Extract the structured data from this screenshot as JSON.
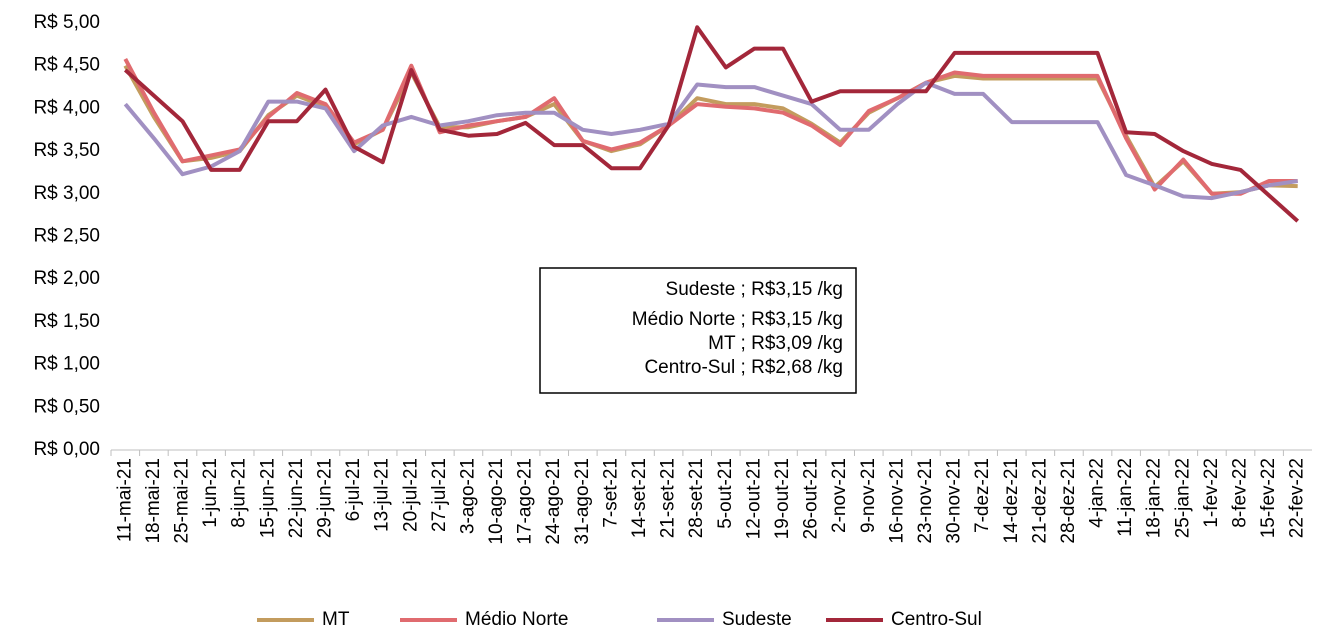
{
  "chart_data": {
    "type": "line",
    "categories": [
      "11-mai-21",
      "18-mai-21",
      "25-mai-21",
      "1-jun-21",
      "8-jun-21",
      "15-jun-21",
      "22-jun-21",
      "29-jun-21",
      "6-jul-21",
      "13-jul-21",
      "20-jul-21",
      "27-jul-21",
      "3-ago-21",
      "10-ago-21",
      "17-ago-21",
      "24-ago-21",
      "31-ago-21",
      "7-set-21",
      "14-set-21",
      "21-set-21",
      "28-set-21",
      "5-out-21",
      "12-out-21",
      "19-out-21",
      "26-out-21",
      "2-nov-21",
      "9-nov-21",
      "16-nov-21",
      "23-nov-21",
      "30-nov-21",
      "7-dez-21",
      "14-dez-21",
      "21-dez-21",
      "28-dez-21",
      "4-jan-22",
      "11-jan-22",
      "18-jan-22",
      "25-jan-22",
      "1-fev-22",
      "8-fev-22",
      "15-fev-22",
      "22-fev-22"
    ],
    "series": [
      {
        "name": "MT",
        "color": "#c39c5e",
        "values": [
          4.5,
          3.9,
          3.38,
          3.42,
          3.5,
          3.92,
          4.15,
          4.02,
          3.58,
          3.75,
          4.42,
          3.78,
          3.78,
          3.85,
          3.9,
          4.05,
          3.62,
          3.5,
          3.58,
          3.8,
          4.12,
          4.05,
          4.05,
          4.0,
          3.82,
          3.6,
          3.95,
          4.12,
          4.3,
          4.38,
          4.35,
          4.35,
          4.35,
          4.35,
          4.35,
          3.68,
          3.08,
          3.38,
          3.0,
          3.02,
          3.1,
          3.09
        ]
      },
      {
        "name": "Médio Norte",
        "color": "#e06b6f",
        "values": [
          4.58,
          3.95,
          3.38,
          3.45,
          3.52,
          3.9,
          4.18,
          4.05,
          3.6,
          3.75,
          4.5,
          3.72,
          3.8,
          3.85,
          3.9,
          4.12,
          3.62,
          3.52,
          3.6,
          3.8,
          4.05,
          4.02,
          4.0,
          3.95,
          3.8,
          3.57,
          3.97,
          4.12,
          4.3,
          4.42,
          4.38,
          4.38,
          4.38,
          4.38,
          4.38,
          3.65,
          3.05,
          3.4,
          3.0,
          3.0,
          3.15,
          3.15
        ]
      },
      {
        "name": "Sudeste",
        "color": "#a190c2",
        "values": [
          4.05,
          3.65,
          3.23,
          3.32,
          3.5,
          4.08,
          4.08,
          4.0,
          3.5,
          3.8,
          3.9,
          3.8,
          3.85,
          3.92,
          3.95,
          3.95,
          3.75,
          3.7,
          3.75,
          3.82,
          4.28,
          4.25,
          4.25,
          4.15,
          4.05,
          3.75,
          3.75,
          4.05,
          4.3,
          4.17,
          4.17,
          3.84,
          3.84,
          3.84,
          3.84,
          3.22,
          3.1,
          2.97,
          2.95,
          3.02,
          3.1,
          3.15
        ]
      },
      {
        "name": "Centro-Sul",
        "color": "#a3273a",
        "values": [
          4.45,
          4.15,
          3.85,
          3.28,
          3.28,
          3.85,
          3.85,
          4.22,
          3.55,
          3.37,
          4.45,
          3.75,
          3.68,
          3.7,
          3.83,
          3.57,
          3.57,
          3.3,
          3.3,
          3.8,
          4.95,
          4.48,
          4.7,
          4.7,
          4.08,
          4.2,
          4.2,
          4.2,
          4.2,
          4.65,
          4.65,
          4.65,
          4.65,
          4.65,
          4.65,
          3.72,
          3.7,
          3.5,
          3.35,
          3.28,
          2.98,
          2.68
        ]
      }
    ],
    "ylim": [
      0,
      5
    ],
    "yticks": [
      {
        "value": 0,
        "label": "R$ 0,00"
      },
      {
        "value": 0.5,
        "label": "R$ 0,50"
      },
      {
        "value": 1,
        "label": "R$ 1,00"
      },
      {
        "value": 1.5,
        "label": "R$ 1,50"
      },
      {
        "value": 2,
        "label": "R$ 2,00"
      },
      {
        "value": 2.5,
        "label": "R$ 2,50"
      },
      {
        "value": 3,
        "label": "R$ 3,00"
      },
      {
        "value": 3.5,
        "label": "R$ 3,50"
      },
      {
        "value": 4,
        "label": "R$ 4,00"
      },
      {
        "value": 4.5,
        "label": "R$ 4,50"
      },
      {
        "value": 5,
        "label": "R$ 5,00"
      }
    ],
    "annotations": [
      "Sudeste ;  R$3,15 /kg",
      "Médio Norte ;  R$3,15 /kg",
      "MT ;  R$3,09 /kg",
      "Centro-Sul ;  R$2,68 /kg"
    ],
    "grid": false,
    "legend": "bottom"
  }
}
